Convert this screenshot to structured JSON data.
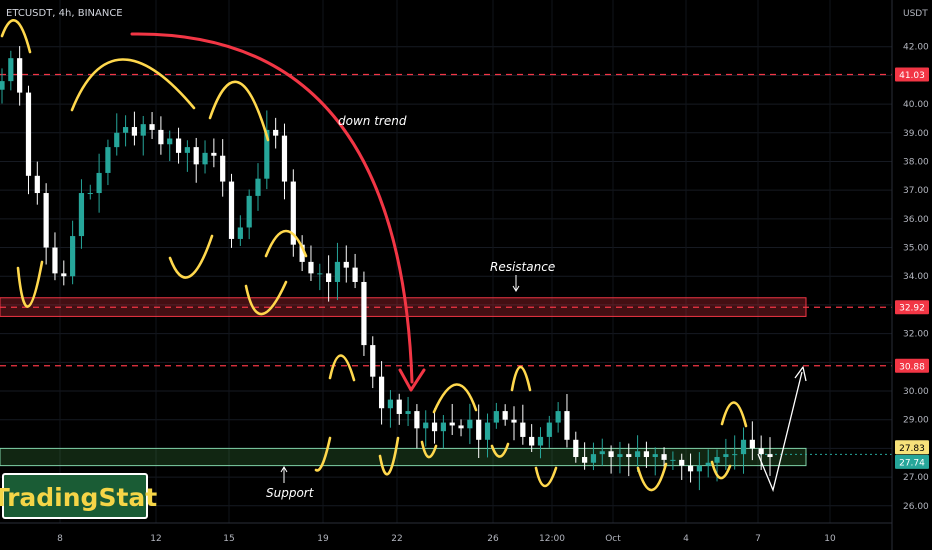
{
  "header": {
    "symbol_line": "ETCUSDT, 4h, BINANCE"
  },
  "axis": {
    "currency": "USDT"
  },
  "logo": {
    "text": "TradingStat"
  },
  "colors": {
    "background": "#000000",
    "bull": "#26a69a",
    "bear": "#ffffff",
    "resistance_line": "#f23645",
    "support_box": "#4caf50",
    "annotation_yellow": "#ffd84d",
    "arrow_red": "#f23645",
    "logo_text": "#f5d547",
    "logo_bg": "#1a5c35"
  },
  "chart_data": {
    "type": "candlestick",
    "symbol": "ETCUSDT",
    "interval": "4h",
    "exchange": "BINANCE",
    "ylim": [
      25.4,
      43.0
    ],
    "y_ticks": [
      26.0,
      27.0,
      28.0,
      29.0,
      30.0,
      31.0,
      32.0,
      33.0,
      34.0,
      35.0,
      36.0,
      37.0,
      38.0,
      39.0,
      40.0,
      41.0,
      42.0
    ],
    "x_ticks": [
      "8",
      "12",
      "15",
      "19",
      "22",
      "26",
      "12:00",
      "Oct",
      "4",
      "7",
      "10"
    ],
    "price_badges": [
      {
        "label": "41.03",
        "value": 41.03,
        "kind": "red"
      },
      {
        "label": "32.92",
        "value": 32.92,
        "kind": "red"
      },
      {
        "label": "30.88",
        "value": 30.88,
        "kind": "red"
      },
      {
        "label": "27.83",
        "value": 27.83,
        "kind": "yellow"
      },
      {
        "label": "27.74",
        "value": 27.74,
        "kind": "green"
      }
    ],
    "resistance_lines": [
      41.03,
      32.92,
      30.88
    ],
    "resistance_zone": {
      "top": 33.25,
      "bottom": 32.6,
      "label": "Resistance"
    },
    "support_zone": {
      "top": 28.0,
      "bottom": 27.4,
      "label": "Support"
    },
    "annotations": {
      "down_trend": "down trend"
    },
    "series_close": [
      40.8,
      41.6,
      40.4,
      37.5,
      36.9,
      35.0,
      34.1,
      34.0,
      35.4,
      36.9,
      36.9,
      37.6,
      38.5,
      39.0,
      39.2,
      38.9,
      39.3,
      39.1,
      38.6,
      38.8,
      38.3,
      38.5,
      37.9,
      38.3,
      38.2,
      37.3,
      35.3,
      35.7,
      36.8,
      37.4,
      39.1,
      38.9,
      37.3,
      35.1,
      34.5,
      34.1,
      34.1,
      33.8,
      34.5,
      34.3,
      33.8,
      31.6,
      30.5,
      29.4,
      29.7,
      29.2,
      29.3,
      28.7,
      28.9,
      28.6,
      28.9,
      28.8,
      28.7,
      29.0,
      28.3,
      28.9,
      29.3,
      29.0,
      28.9,
      28.4,
      28.1,
      28.4,
      28.9,
      29.3,
      28.3,
      27.7,
      27.5,
      27.8,
      27.9,
      27.7,
      27.8,
      27.7,
      27.9,
      27.7,
      27.8,
      27.6,
      27.6,
      27.4,
      27.2,
      27.4,
      27.5,
      27.7,
      27.8,
      27.8,
      28.3,
      28.0,
      27.8,
      27.7
    ],
    "projection": [
      [
        27.6,
        27.0
      ],
      [
        27.0,
        30.8
      ]
    ]
  }
}
